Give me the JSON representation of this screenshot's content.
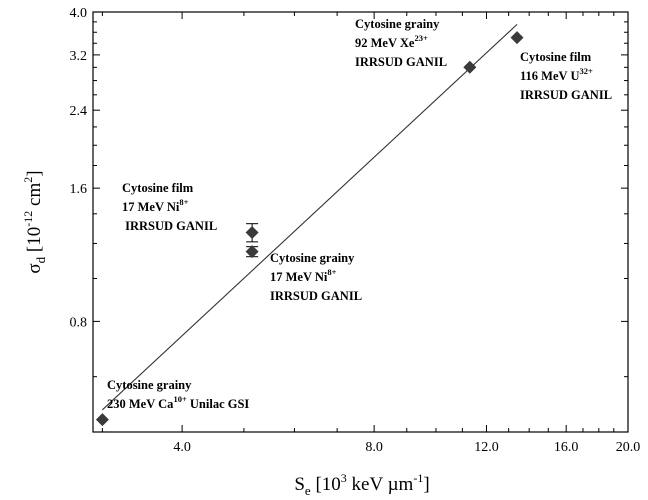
{
  "chart_data": {
    "type": "scatter",
    "xscale": "log",
    "yscale": "log",
    "xlim": [
      2.9,
      20.0
    ],
    "ylim": [
      0.45,
      4.0
    ],
    "xticks": [
      {
        "value": 4.0,
        "label": "4.0"
      },
      {
        "value": 8.0,
        "label": "8.0"
      },
      {
        "value": 12.0,
        "label": "12.0"
      },
      {
        "value": 16.0,
        "label": "16.0"
      },
      {
        "value": 20.0,
        "label": "20.0"
      }
    ],
    "yticks": [
      {
        "value": 0.8,
        "label": "0.8"
      },
      {
        "value": 1.6,
        "label": "1.6"
      },
      {
        "value": 2.4,
        "label": "2.4"
      },
      {
        "value": 3.2,
        "label": "3.2"
      },
      {
        "value": 4.0,
        "label": "4.0"
      }
    ],
    "xlabel": {
      "main": "S",
      "sub": "e",
      "pre": " [10",
      "sup1": "3",
      "mid": " keV µm",
      "sup2": "-1",
      "post": "]"
    },
    "ylabel": {
      "main": "σ",
      "sub": "d",
      "pre": " [10",
      "sup1": "-12",
      "mid": " cm",
      "sup2": "2",
      "post": "]"
    },
    "points": [
      {
        "x": 3.0,
        "y": 0.48
      },
      {
        "x": 5.15,
        "y": 1.15,
        "err": 0.03
      },
      {
        "x": 5.15,
        "y": 1.27,
        "err": 0.06
      },
      {
        "x": 11.3,
        "y": 3.0
      },
      {
        "x": 13.4,
        "y": 3.5
      }
    ],
    "fit_line": {
      "x": [
        3.0,
        13.4
      ],
      "y": [
        0.505,
        3.75
      ]
    },
    "grid": false,
    "legend": "none",
    "marker_color": "#3a3a3a",
    "line_color": "#333333",
    "annotations": [
      {
        "lines": [
          "Cytosine grainy",
          "230 MeV Ca^{10+} Unilac GSI"
        ]
      },
      {
        "lines": [
          "Cytosine grainy",
          "17 MeV Ni^{8+}",
          "IRRSUD GANIL"
        ]
      },
      {
        "lines": [
          "Cytosine film",
          "17 MeV Ni^{8+}",
          " IRRSUD GANIL"
        ]
      },
      {
        "lines": [
          "Cytosine grainy",
          "92 MeV Xe^{23+}",
          "IRRSUD GANIL"
        ]
      },
      {
        "lines": [
          "Cytosine film",
          "116 MeV  U^{32+}",
          "IRRSUD GANIL"
        ]
      }
    ]
  }
}
